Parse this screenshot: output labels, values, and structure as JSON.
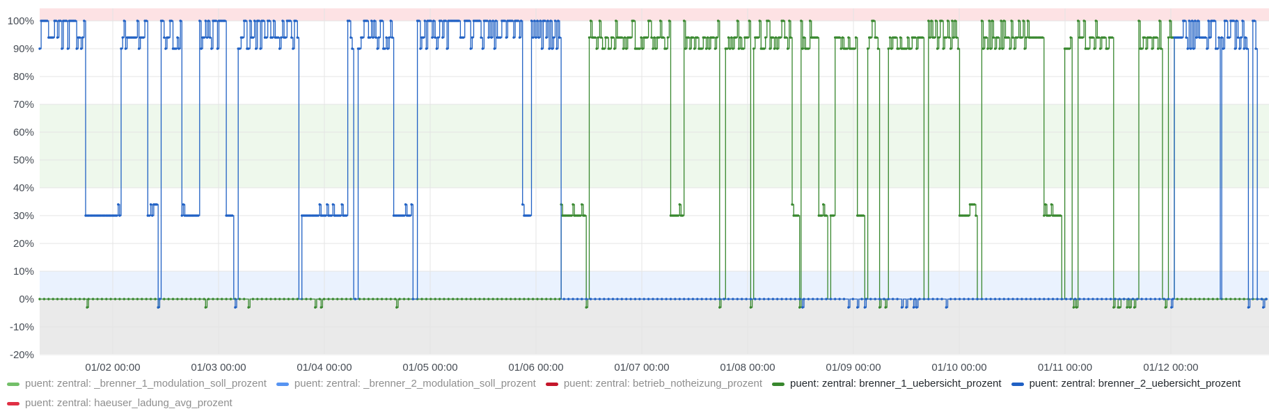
{
  "chart_data": {
    "type": "line",
    "title": "",
    "xlabel": "",
    "ylabel": "",
    "ylim": [
      -20,
      100
    ],
    "y_ticks": [
      "-20%",
      "-10%",
      "0%",
      "10%",
      "20%",
      "30%",
      "40%",
      "50%",
      "60%",
      "70%",
      "80%",
      "90%",
      "100%"
    ],
    "x_ticks": [
      "01/02 00:00",
      "01/03 00:00",
      "01/04 00:00",
      "01/05 00:00",
      "01/06 00:00",
      "01/07 00:00",
      "01/08 00:00",
      "01/09 00:00",
      "01/10 00:00",
      "01/11 00:00",
      "01/12 00:00"
    ],
    "x_range": [
      "01/01 08:00",
      "01/12 20:00"
    ],
    "grid": true,
    "threshold_bands": [
      {
        "from": 100,
        "to": 105,
        "color": "#fde2e4"
      },
      {
        "from": 40,
        "to": 70,
        "color": "#eef8ec"
      },
      {
        "from": 0,
        "to": 10,
        "color": "#eaf2fe"
      },
      {
        "from": -20,
        "to": 0,
        "color": "#eaeaea"
      }
    ],
    "legend_position": "bottom",
    "series": [
      {
        "name": "puent: zentral: _brenner_1_modulation_soll_prozent",
        "color": "#73bf69",
        "active": false
      },
      {
        "name": "puent: zentral: _brenner_2_modulation_soll_prozent",
        "color": "#5794f2",
        "active": false
      },
      {
        "name": "puent: zentral: betrieb_notheizung_prozent",
        "color": "#c4162a",
        "active": false
      },
      {
        "name": "puent: zentral: brenner_1_uebersicht_prozent",
        "color": "#37872d",
        "active": true
      },
      {
        "name": "puent: zentral: brenner_2_uebersicht_prozent",
        "color": "#1f60c4",
        "active": true
      },
      {
        "name": "puent: zentral: haeuser_ladung_avg_prozent",
        "color": "#e02f44",
        "active": false
      }
    ],
    "active_periods": {
      "brenner_2": [
        [
          0.0,
          4.92
        ],
        [
          10.72,
          11.5
        ]
      ],
      "brenner_1": [
        [
          4.92,
          10.72
        ]
      ]
    },
    "values_note_levels": [
      100,
      94,
      90,
      30,
      0,
      -3
    ]
  }
}
